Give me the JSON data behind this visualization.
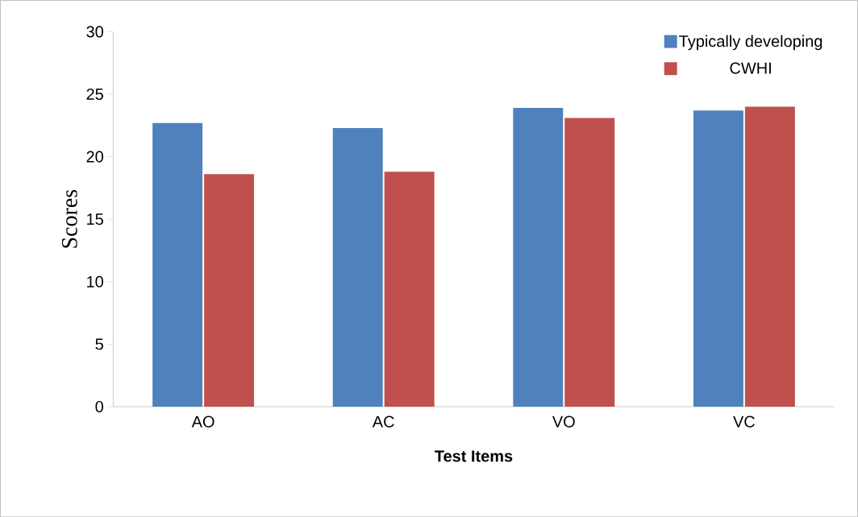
{
  "chart_data": {
    "type": "bar",
    "xlabel": "Test Items",
    "ylabel": "Scores",
    "categories": [
      "AO",
      "AC",
      "VO",
      "VC"
    ],
    "series": [
      {
        "name": "Typically developing",
        "color": "#4f81bd",
        "values": [
          22.7,
          22.3,
          23.9,
          23.7
        ]
      },
      {
        "name": "CWHI",
        "color": "#c0504d",
        "values": [
          18.6,
          18.8,
          23.1,
          24.0
        ]
      }
    ],
    "ylim": [
      0,
      30
    ],
    "yticks": [
      0,
      5,
      10,
      15,
      20,
      25,
      30
    ],
    "legend": "top right",
    "grid": false
  }
}
